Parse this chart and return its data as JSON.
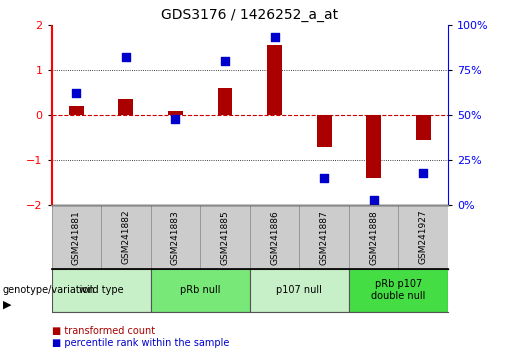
{
  "title": "GDS3176 / 1426252_a_at",
  "samples": [
    "GSM241881",
    "GSM241882",
    "GSM241883",
    "GSM241885",
    "GSM241886",
    "GSM241887",
    "GSM241888",
    "GSM241927"
  ],
  "red_values": [
    0.2,
    0.35,
    0.1,
    0.6,
    1.55,
    -0.7,
    -1.4,
    -0.55
  ],
  "blue_percentile": [
    62,
    82,
    48,
    80,
    93,
    15,
    3,
    18
  ],
  "groups": [
    {
      "label": "wild type",
      "start": 0,
      "end": 2,
      "color": "#c8f0c8"
    },
    {
      "label": "pRb null",
      "start": 2,
      "end": 4,
      "color": "#78e878"
    },
    {
      "label": "p107 null",
      "start": 4,
      "end": 6,
      "color": "#c8f0c8"
    },
    {
      "label": "pRb p107\ndouble null",
      "start": 6,
      "end": 8,
      "color": "#44dd44"
    }
  ],
  "ylim_left": [
    -2,
    2
  ],
  "ylim_right": [
    0,
    100
  ],
  "yticks_left": [
    -2,
    -1,
    0,
    1,
    2
  ],
  "yticks_right": [
    0,
    25,
    50,
    75,
    100
  ],
  "ytick_labels_right": [
    "0%",
    "25%",
    "50%",
    "75%",
    "100%"
  ],
  "red_color": "#aa0000",
  "blue_color": "#0000cc",
  "hline_color": "#cc0000",
  "bar_width": 0.3,
  "blue_marker_size": 40,
  "sample_box_color": "#cccccc",
  "sample_box_edge": "#999999"
}
